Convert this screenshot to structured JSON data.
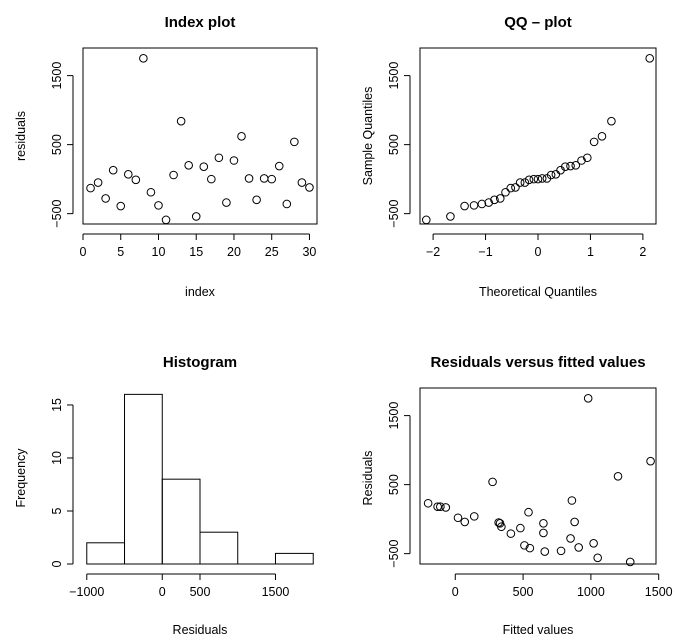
{
  "chart_data": [
    {
      "type": "scatter",
      "title": "Index plot",
      "xlabel": "index",
      "ylabel": "residuals",
      "xlim": [
        0,
        31
      ],
      "ylim": [
        -650,
        1900
      ],
      "xticks": [
        0,
        5,
        10,
        15,
        20,
        25,
        30
      ],
      "yticks": [
        -500,
        500,
        1500
      ],
      "points": [
        {
          "x": 1,
          "y": -130
        },
        {
          "x": 2,
          "y": -50
        },
        {
          "x": 3,
          "y": -280
        },
        {
          "x": 4,
          "y": 130
        },
        {
          "x": 5,
          "y": -390
        },
        {
          "x": 6,
          "y": 70
        },
        {
          "x": 7,
          "y": -10
        },
        {
          "x": 8,
          "y": 1750
        },
        {
          "x": 9,
          "y": -190
        },
        {
          "x": 10,
          "y": -380
        },
        {
          "x": 11,
          "y": -590
        },
        {
          "x": 12,
          "y": 60
        },
        {
          "x": 13,
          "y": 840
        },
        {
          "x": 14,
          "y": 200
        },
        {
          "x": 15,
          "y": -540
        },
        {
          "x": 16,
          "y": 180
        },
        {
          "x": 17,
          "y": 0
        },
        {
          "x": 18,
          "y": 310
        },
        {
          "x": 19,
          "y": -340
        },
        {
          "x": 20,
          "y": 270
        },
        {
          "x": 21,
          "y": 620
        },
        {
          "x": 22,
          "y": 10
        },
        {
          "x": 23,
          "y": -300
        },
        {
          "x": 24,
          "y": 10
        },
        {
          "x": 25,
          "y": 0
        },
        {
          "x": 26,
          "y": 190
        },
        {
          "x": 27,
          "y": -360
        },
        {
          "x": 28,
          "y": 540
        },
        {
          "x": 29,
          "y": -50
        },
        {
          "x": 30,
          "y": -120
        }
      ]
    },
    {
      "type": "scatter",
      "title": "QQ – plot",
      "xlabel": "Theoretical Quantiles",
      "ylabel": "Sample Quantiles",
      "xlim": [
        -2.25,
        2.25
      ],
      "ylim": [
        -650,
        1900
      ],
      "xticks": [
        -2,
        -1,
        0,
        1,
        2
      ],
      "yticks": [
        -500,
        500,
        1500
      ],
      "points": [
        {
          "x": -2.13,
          "y": -590
        },
        {
          "x": -1.67,
          "y": -540
        },
        {
          "x": -1.4,
          "y": -390
        },
        {
          "x": -1.22,
          "y": -380
        },
        {
          "x": -1.07,
          "y": -360
        },
        {
          "x": -0.94,
          "y": -340
        },
        {
          "x": -0.83,
          "y": -300
        },
        {
          "x": -0.72,
          "y": -280
        },
        {
          "x": -0.62,
          "y": -190
        },
        {
          "x": -0.52,
          "y": -130
        },
        {
          "x": -0.43,
          "y": -120
        },
        {
          "x": -0.34,
          "y": -50
        },
        {
          "x": -0.25,
          "y": -50
        },
        {
          "x": -0.17,
          "y": -10
        },
        {
          "x": -0.08,
          "y": 0
        },
        {
          "x": 0.0,
          "y": 0
        },
        {
          "x": 0.08,
          "y": 10
        },
        {
          "x": 0.17,
          "y": 10
        },
        {
          "x": 0.25,
          "y": 60
        },
        {
          "x": 0.34,
          "y": 70
        },
        {
          "x": 0.43,
          "y": 130
        },
        {
          "x": 0.52,
          "y": 180
        },
        {
          "x": 0.62,
          "y": 190
        },
        {
          "x": 0.72,
          "y": 200
        },
        {
          "x": 0.83,
          "y": 270
        },
        {
          "x": 0.94,
          "y": 310
        },
        {
          "x": 1.07,
          "y": 540
        },
        {
          "x": 1.22,
          "y": 620
        },
        {
          "x": 1.4,
          "y": 840
        },
        {
          "x": 2.13,
          "y": 1750
        }
      ]
    },
    {
      "type": "bar",
      "title": "Histogram",
      "xlabel": "Residuals",
      "ylabel": "Frequency",
      "xlim": [
        -1050,
        2050
      ],
      "ylim": [
        0,
        16.6
      ],
      "xticks": [
        -1000,
        0,
        500,
        1500
      ],
      "yticks": [
        0,
        5,
        10,
        15
      ],
      "bins": [
        {
          "from": -1000,
          "to": -500,
          "count": 2
        },
        {
          "from": -500,
          "to": 0,
          "count": 16
        },
        {
          "from": 0,
          "to": 500,
          "count": 8
        },
        {
          "from": 500,
          "to": 1000,
          "count": 3
        },
        {
          "from": 1000,
          "to": 1500,
          "count": 0
        },
        {
          "from": 1500,
          "to": 2000,
          "count": 1
        }
      ]
    },
    {
      "type": "scatter",
      "title": "Residuals versus fitted values",
      "xlabel": "Fitted values",
      "ylabel": "Residuals",
      "xlim": [
        -260,
        1480
      ],
      "ylim": [
        -650,
        1900
      ],
      "xticks": [
        0,
        500,
        1000,
        1500
      ],
      "yticks": [
        -500,
        500,
        1500
      ],
      "points": [
        {
          "x": -200,
          "y": 230
        },
        {
          "x": -130,
          "y": 180
        },
        {
          "x": -110,
          "y": 180
        },
        {
          "x": -70,
          "y": 170
        },
        {
          "x": 20,
          "y": 20
        },
        {
          "x": 70,
          "y": -40
        },
        {
          "x": 140,
          "y": 40
        },
        {
          "x": 275,
          "y": 540
        },
        {
          "x": 320,
          "y": -50
        },
        {
          "x": 330,
          "y": -60
        },
        {
          "x": 340,
          "y": -110
        },
        {
          "x": 410,
          "y": -210
        },
        {
          "x": 480,
          "y": -130
        },
        {
          "x": 510,
          "y": -380
        },
        {
          "x": 540,
          "y": 100
        },
        {
          "x": 550,
          "y": -420
        },
        {
          "x": 650,
          "y": -60
        },
        {
          "x": 650,
          "y": -200
        },
        {
          "x": 660,
          "y": -470
        },
        {
          "x": 780,
          "y": -460
        },
        {
          "x": 850,
          "y": -280
        },
        {
          "x": 860,
          "y": 270
        },
        {
          "x": 880,
          "y": -40
        },
        {
          "x": 910,
          "y": -410
        },
        {
          "x": 980,
          "y": 1750
        },
        {
          "x": 1020,
          "y": -350
        },
        {
          "x": 1050,
          "y": -560
        },
        {
          "x": 1200,
          "y": 620
        },
        {
          "x": 1290,
          "y": -620
        },
        {
          "x": 1440,
          "y": 840
        }
      ]
    }
  ]
}
